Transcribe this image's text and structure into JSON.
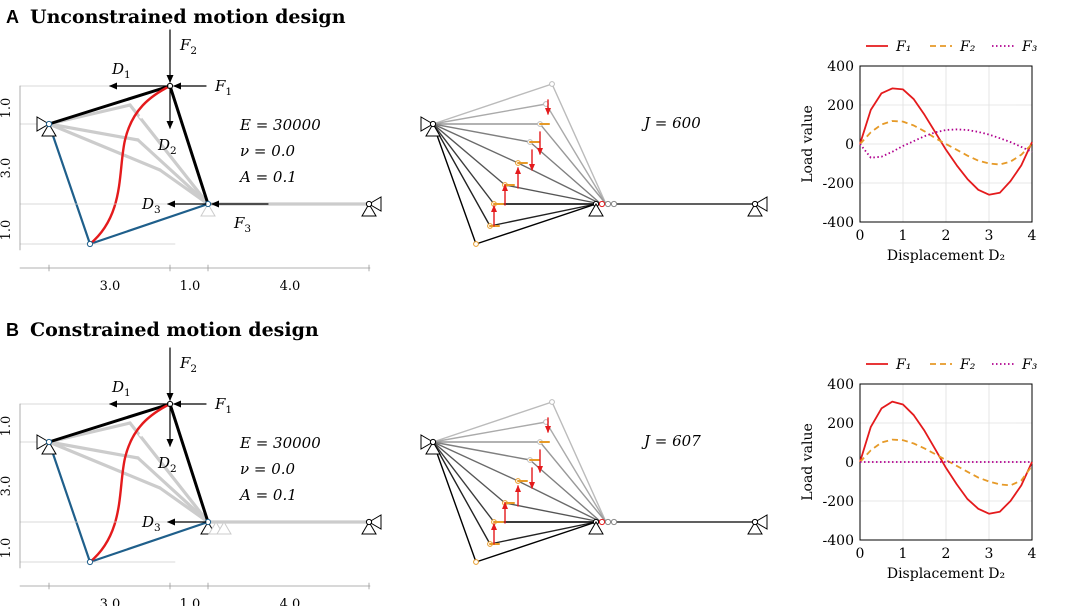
{
  "panels": [
    {
      "letter": "A",
      "title": "Unconstrained motion design",
      "J": "J = 600",
      "material": {
        "E": "E = 30000",
        "nu": "ν = 0.0",
        "A": "A = 0.1"
      },
      "chart_data": {
        "type": "line",
        "xlabel": "Displacement D₂",
        "ylabel": "Load value",
        "xlim": [
          0,
          4
        ],
        "ylim": [
          -400,
          400
        ],
        "xticks": [
          "0",
          "1",
          "2",
          "3",
          "4"
        ],
        "yticks": [
          "400",
          "200",
          "0",
          "-200",
          "-400"
        ],
        "grid": true,
        "legend": "top",
        "x": [
          0,
          0.25,
          0.5,
          0.75,
          1,
          1.25,
          1.5,
          1.75,
          2,
          2.25,
          2.5,
          2.75,
          3,
          3.25,
          3.5,
          3.75,
          4
        ],
        "series": [
          {
            "name": "F₁",
            "color": "#e41a1c",
            "dash": "solid",
            "values": [
              0,
              175,
              260,
              285,
              280,
              230,
              150,
              60,
              -30,
              -110,
              -180,
              -235,
              -260,
              -250,
              -190,
              -110,
              10
            ]
          },
          {
            "name": "F₂",
            "color": "#e69a28",
            "dash": "dashed",
            "values": [
              0,
              60,
              100,
              118,
              115,
              95,
              65,
              30,
              0,
              -30,
              -60,
              -85,
              -100,
              -105,
              -90,
              -55,
              0
            ]
          },
          {
            "name": "F₃",
            "color": "#b0008e",
            "dash": "dotted",
            "values": [
              0,
              -70,
              -65,
              -40,
              -10,
              15,
              40,
              60,
              72,
              75,
              72,
              62,
              48,
              30,
              10,
              -15,
              -40
            ]
          }
        ]
      }
    },
    {
      "letter": "B",
      "title": "Constrained motion design",
      "J": "J = 607",
      "material": {
        "E": "E = 30000",
        "nu": "ν = 0.0",
        "A": "A = 0.1"
      },
      "chart_data": {
        "type": "line",
        "xlabel": "Displacement D₂",
        "ylabel": "Load value",
        "xlim": [
          0,
          4
        ],
        "ylim": [
          -400,
          400
        ],
        "xticks": [
          "0",
          "1",
          "2",
          "3",
          "4"
        ],
        "yticks": [
          "400",
          "200",
          "0",
          "-200",
          "-400"
        ],
        "grid": true,
        "legend": "top",
        "x": [
          0,
          0.25,
          0.5,
          0.75,
          1,
          1.25,
          1.5,
          1.75,
          2,
          2.25,
          2.5,
          2.75,
          3,
          3.25,
          3.5,
          3.75,
          4
        ],
        "series": [
          {
            "name": "F₁",
            "color": "#e41a1c",
            "dash": "solid",
            "values": [
              0,
              180,
              275,
              310,
              295,
              240,
              160,
              65,
              -30,
              -115,
              -190,
              -240,
              -265,
              -255,
              -200,
              -120,
              0
            ]
          },
          {
            "name": "F₂",
            "color": "#e69a28",
            "dash": "dashed",
            "values": [
              0,
              60,
              100,
              115,
              112,
              95,
              70,
              40,
              10,
              -20,
              -50,
              -80,
              -100,
              -115,
              -120,
              -95,
              -20
            ]
          },
          {
            "name": "F₃",
            "color": "#b0008e",
            "dash": "dotted",
            "values": [
              0,
              0,
              0,
              0,
              0,
              0,
              0,
              0,
              0,
              0,
              0,
              0,
              0,
              0,
              0,
              0,
              0
            ]
          }
        ]
      }
    }
  ],
  "truss_labels": {
    "F1": "F",
    "F1_sub": "1",
    "F2": "F",
    "F2_sub": "2",
    "F3": "F",
    "F3_sub": "3",
    "D1": "D",
    "D1_sub": "1",
    "D2": "D",
    "D2_sub": "2",
    "D3": "D",
    "D3_sub": "3",
    "dims_vertical": [
      "1.0",
      "3.0",
      "1.0"
    ],
    "dims_horizontal": [
      "3.0",
      "1.0",
      "4.0"
    ]
  },
  "colors": {
    "red": "#e41a1c",
    "blue": "#1f5f8b",
    "light_gray": "#cccccc",
    "mid_gray": "#999999",
    "dark_gray": "#555555",
    "black": "#000000",
    "orange": "#e69a28"
  }
}
